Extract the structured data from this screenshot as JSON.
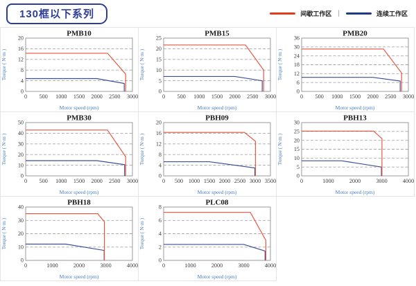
{
  "header": {
    "badge": "130框以下系列",
    "legend": {
      "intermittent_label": "间歇工作区",
      "separator": "|",
      "continuous_label": "连续工作区",
      "intermittent_color": "#e23b20",
      "continuous_color": "#1f3a80"
    }
  },
  "colors": {
    "curve_red": "#e8513d",
    "curve_navy": "#3a4d97",
    "axis_title_blue": "#4a7fc1",
    "grid_border": "#e4e4e8",
    "plot_border": "#8f8f8f"
  },
  "chart_data": [
    {
      "type": "line",
      "title": "PMB10",
      "xlabel": "Motor speed (rpm)",
      "ylabel": "Torque ( N·m )",
      "xlim": [
        0,
        3000
      ],
      "ylim": [
        0,
        20
      ],
      "xticks": [
        0,
        500,
        1000,
        1500,
        2000,
        2500,
        3000
      ],
      "yticks": [
        0,
        4,
        8,
        12,
        16,
        20
      ],
      "grid": "dashed-horizontal",
      "series": [
        {
          "name": "间歇工作区",
          "color": "#e8513d",
          "points": [
            [
              0,
              14.3
            ],
            [
              2300,
              14.3
            ],
            [
              2810,
              6.5
            ],
            [
              2810,
              0
            ]
          ]
        },
        {
          "name": "连续工作区",
          "color": "#3a4d97",
          "points": [
            [
              0,
              4.8
            ],
            [
              2000,
              4.8
            ],
            [
              2770,
              3
            ],
            [
              2770,
              0
            ]
          ]
        }
      ]
    },
    {
      "type": "line",
      "title": "PMB15",
      "xlabel": "Motor speed (rpm)",
      "ylabel": "Torque ( N·m )",
      "xlim": [
        0,
        3000
      ],
      "ylim": [
        0,
        25
      ],
      "xticks": [
        0,
        500,
        1000,
        1500,
        2000,
        2500,
        3000
      ],
      "yticks": [
        0,
        5,
        10,
        15,
        20,
        25
      ],
      "grid": "dashed-horizontal",
      "series": [
        {
          "name": "间歇工作区",
          "color": "#e8513d",
          "points": [
            [
              0,
              21.8
            ],
            [
              2300,
              21.8
            ],
            [
              2810,
              10
            ],
            [
              2810,
              0
            ]
          ]
        },
        {
          "name": "连续工作区",
          "color": "#3a4d97",
          "points": [
            [
              0,
              7
            ],
            [
              2000,
              7
            ],
            [
              2770,
              5
            ],
            [
              2770,
              0
            ]
          ]
        }
      ]
    },
    {
      "type": "line",
      "title": "PMB20",
      "xlabel": "Motor speed (rpm)",
      "ylabel": "Torque ( N·m )",
      "xlim": [
        0,
        3000
      ],
      "ylim": [
        0,
        36
      ],
      "xticks": [
        0,
        500,
        1000,
        1500,
        2000,
        2500,
        3000
      ],
      "yticks": [
        0,
        6,
        12,
        18,
        24,
        30,
        36
      ],
      "grid": "dashed-horizontal",
      "series": [
        {
          "name": "间歇工作区",
          "color": "#e8513d",
          "points": [
            [
              0,
              28.6
            ],
            [
              2300,
              28.6
            ],
            [
              2810,
              12.5
            ],
            [
              2810,
              0
            ]
          ]
        },
        {
          "name": "连续工作区",
          "color": "#3a4d97",
          "points": [
            [
              0,
              9.5
            ],
            [
              2000,
              9.5
            ],
            [
              2770,
              7
            ],
            [
              2770,
              0
            ]
          ]
        }
      ]
    },
    {
      "type": "line",
      "title": "PMB30",
      "xlabel": "Motor speed (rpm)",
      "ylabel": "Torque ( N·m )",
      "xlim": [
        0,
        3000
      ],
      "ylim": [
        0,
        50
      ],
      "xticks": [
        0,
        500,
        1000,
        1500,
        2000,
        2500,
        3000
      ],
      "yticks": [
        0,
        10,
        20,
        30,
        40,
        50
      ],
      "grid": "dashed-horizontal",
      "series": [
        {
          "name": "间歇工作区",
          "color": "#e8513d",
          "points": [
            [
              0,
              43
            ],
            [
              2300,
              43
            ],
            [
              2810,
              18
            ],
            [
              2810,
              0
            ]
          ]
        },
        {
          "name": "连续工作区",
          "color": "#3a4d97",
          "points": [
            [
              0,
              14.3
            ],
            [
              2000,
              14.3
            ],
            [
              2780,
              10.5
            ],
            [
              2780,
              0
            ]
          ]
        }
      ]
    },
    {
      "type": "line",
      "title": "PBH09",
      "xlabel": "Motor speed (rpm)",
      "ylabel": "Torque ( N·m )",
      "xlim": [
        0,
        3500
      ],
      "ylim": [
        0,
        20
      ],
      "xticks": [
        0,
        500,
        1000,
        1500,
        2000,
        2500,
        3000,
        3500
      ],
      "yticks": [
        0,
        4,
        8,
        12,
        16,
        20
      ],
      "grid": "dashed-horizontal",
      "series": [
        {
          "name": "间歇工作区",
          "color": "#e8513d",
          "points": [
            [
              0,
              16.3
            ],
            [
              2650,
              16.3
            ],
            [
              3010,
              13
            ],
            [
              3010,
              0
            ]
          ]
        },
        {
          "name": "连续工作区",
          "color": "#3a4d97",
          "points": [
            [
              0,
              5.3
            ],
            [
              1500,
              5.3
            ],
            [
              2990,
              3
            ],
            [
              2990,
              0
            ]
          ]
        }
      ]
    },
    {
      "type": "line",
      "title": "PBH13",
      "xlabel": "Motor speed (rpm)",
      "ylabel": "Torque ( N·m )",
      "xlim": [
        0,
        4000
      ],
      "ylim": [
        0,
        30
      ],
      "xticks": [
        0,
        1000,
        2000,
        3000,
        4000
      ],
      "yticks": [
        0,
        5,
        10,
        15,
        20,
        25,
        30
      ],
      "grid": "dashed-horizontal",
      "series": [
        {
          "name": "间歇工作区",
          "color": "#e8513d",
          "points": [
            [
              0,
              25.2
            ],
            [
              2700,
              25.2
            ],
            [
              3010,
              21
            ],
            [
              3010,
              0
            ]
          ]
        },
        {
          "name": "连续工作区",
          "color": "#3a4d97",
          "points": [
            [
              0,
              8.5
            ],
            [
              1500,
              8.5
            ],
            [
              2990,
              5
            ],
            [
              2990,
              0
            ]
          ]
        }
      ]
    },
    {
      "type": "line",
      "title": "PBH18",
      "xlabel": "Motor speed (rpm)",
      "ylabel": "Torque ( N·m )",
      "xlim": [
        0,
        4000
      ],
      "ylim": [
        0,
        40
      ],
      "xticks": [
        0,
        1000,
        2000,
        3000,
        4000
      ],
      "yticks": [
        0,
        10,
        20,
        30,
        40
      ],
      "grid": "dashed-horizontal",
      "series": [
        {
          "name": "间歇工作区",
          "color": "#e8513d",
          "points": [
            [
              0,
              35
            ],
            [
              2700,
              35
            ],
            [
              2950,
              29
            ],
            [
              2950,
              0
            ]
          ]
        },
        {
          "name": "连续工作区",
          "color": "#3a4d97",
          "points": [
            [
              0,
              12.2
            ],
            [
              1500,
              12.2
            ],
            [
              2940,
              7.5
            ],
            [
              2940,
              0
            ]
          ]
        }
      ]
    },
    {
      "type": "line",
      "title": "PLC08",
      "xlabel": "Motor speed (rpm)",
      "ylabel": "Torque ( N·m )",
      "xlim": [
        0,
        4000
      ],
      "ylim": [
        0,
        8
      ],
      "xticks": [
        0,
        1000,
        2000,
        3000,
        4000
      ],
      "yticks": [
        0,
        2,
        4,
        6,
        8
      ],
      "grid": "dashed-horizontal",
      "series": [
        {
          "name": "间歇工作区",
          "color": "#e8513d",
          "points": [
            [
              0,
              7.2
            ],
            [
              3250,
              7.2
            ],
            [
              3830,
              3
            ],
            [
              3830,
              0
            ]
          ]
        },
        {
          "name": "连续工作区",
          "color": "#3a4d97",
          "points": [
            [
              0,
              2.4
            ],
            [
              3000,
              2.4
            ],
            [
              3800,
              1.4
            ],
            [
              3800,
              0
            ]
          ]
        }
      ]
    }
  ]
}
